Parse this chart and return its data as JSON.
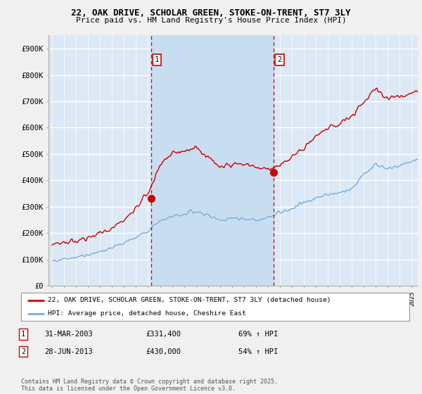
{
  "title_line1": "22, OAK DRIVE, SCHOLAR GREEN, STOKE-ON-TRENT, ST7 3LY",
  "title_line2": "Price paid vs. HM Land Registry's House Price Index (HPI)",
  "ylabel_ticks": [
    "£0",
    "£100K",
    "£200K",
    "£300K",
    "£400K",
    "£500K",
    "£600K",
    "£700K",
    "£800K",
    "£900K"
  ],
  "ytick_values": [
    0,
    100000,
    200000,
    300000,
    400000,
    500000,
    600000,
    700000,
    800000,
    900000
  ],
  "ylim": [
    0,
    950000
  ],
  "xlim_start": 1994.7,
  "xlim_end": 2025.5,
  "background_color": "#f0f0f0",
  "plot_bg_color": "#dce8f5",
  "grid_color": "#ffffff",
  "red_line_color": "#cc0000",
  "blue_line_color": "#7aaddb",
  "shade_color": "#c8ddf0",
  "marker1_x": 2003.24,
  "marker1_y": 331400,
  "marker2_x": 2013.49,
  "marker2_y": 430000,
  "marker1_label": "1",
  "marker2_label": "2",
  "sale1_date": "31-MAR-2003",
  "sale1_price": "£331,400",
  "sale1_hpi": "69% ↑ HPI",
  "sale2_date": "28-JUN-2013",
  "sale2_price": "£430,000",
  "sale2_hpi": "54% ↑ HPI",
  "legend_line1": "22, OAK DRIVE, SCHOLAR GREEN, STOKE-ON-TRENT, ST7 3LY (detached house)",
  "legend_line2": "HPI: Average price, detached house, Cheshire East",
  "footer": "Contains HM Land Registry data © Crown copyright and database right 2025.\nThis data is licensed under the Open Government Licence v3.0."
}
